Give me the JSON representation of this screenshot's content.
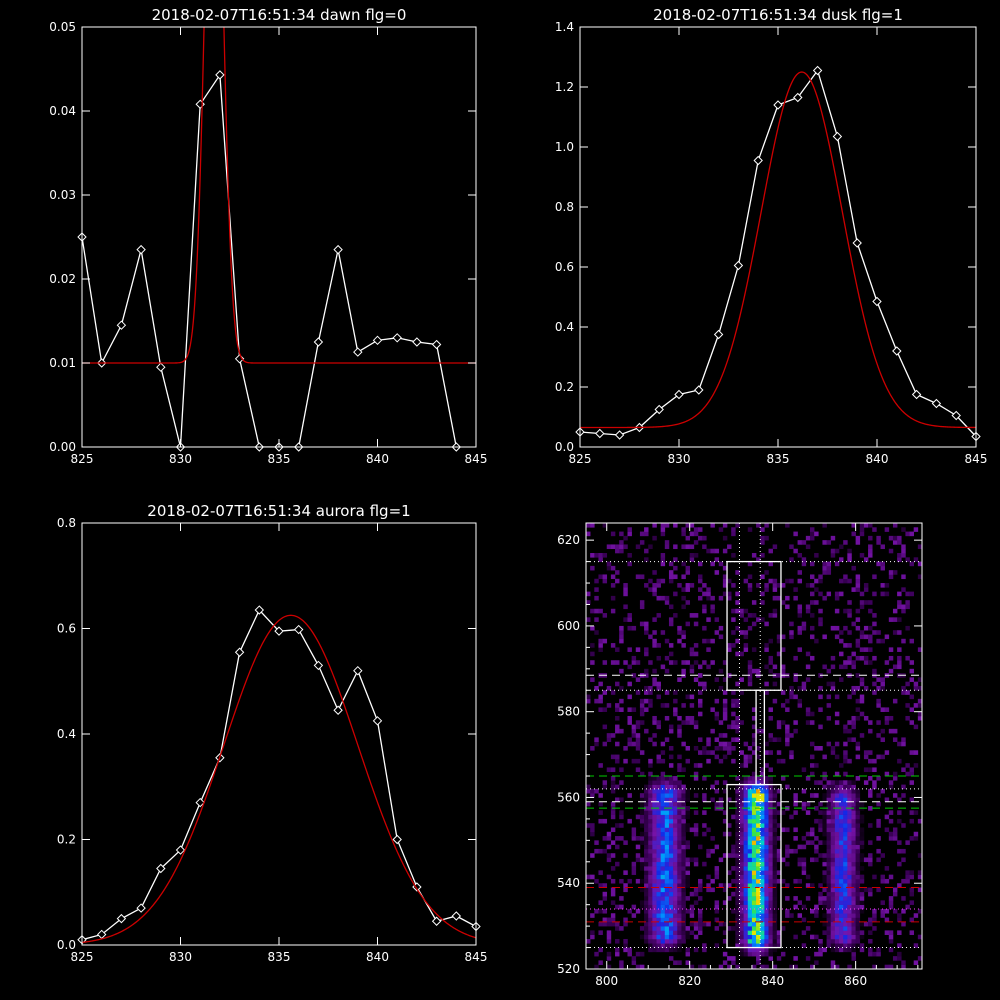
{
  "chart_data": [
    {
      "type": "line",
      "title": "2018-02-07T16:51:34 dawn flg=0",
      "xlim": [
        825,
        845
      ],
      "ylim": [
        0,
        0.05
      ],
      "xticks": [
        "825",
        "830",
        "835",
        "840",
        "845"
      ],
      "yticks": [
        "0.00",
        "0.01",
        "0.02",
        "0.03",
        "0.04",
        "0.05"
      ],
      "series": [
        {
          "color": "#ffffff",
          "markers": "diamond",
          "x": [
            825,
            826,
            827,
            828,
            829,
            830,
            831,
            832,
            833,
            834,
            835,
            836,
            837,
            838,
            839,
            840,
            841,
            842,
            843,
            844
          ],
          "y": [
            0.025,
            0.01,
            0.0145,
            0.0235,
            0.0095,
            0.0,
            0.0408,
            0.0443,
            0.0105,
            0.0,
            0.0,
            0.0,
            0.0125,
            0.0235,
            0.0113,
            0.0127,
            0.013,
            0.0125,
            0.0122,
            0.0
          ]
        },
        {
          "color": "#cc0000",
          "markers": "none",
          "fit": "gaussian",
          "amplitude": 0.075,
          "center": 831.7,
          "sigma": 0.45,
          "baseline": 0.01
        }
      ]
    },
    {
      "type": "line",
      "title": "2018-02-07T16:51:34 dusk flg=1",
      "xlim": [
        825,
        845
      ],
      "ylim": [
        0,
        1.4
      ],
      "xticks": [
        "825",
        "830",
        "835",
        "840",
        "845"
      ],
      "yticks": [
        "0.0",
        "0.2",
        "0.4",
        "0.6",
        "0.8",
        "1.0",
        "1.2",
        "1.4"
      ],
      "series": [
        {
          "color": "#ffffff",
          "markers": "diamond",
          "x": [
            825,
            826,
            827,
            828,
            829,
            830,
            831,
            832,
            833,
            834,
            835,
            836,
            837,
            838,
            839,
            840,
            841,
            842,
            843,
            844,
            845
          ],
          "y": [
            0.05,
            0.045,
            0.04,
            0.065,
            0.125,
            0.175,
            0.19,
            0.375,
            0.605,
            0.955,
            1.14,
            1.165,
            1.255,
            1.035,
            0.68,
            0.485,
            0.32,
            0.175,
            0.145,
            0.105,
            0.035
          ]
        },
        {
          "color": "#cc0000",
          "markers": "none",
          "fit": "gaussian",
          "amplitude": 1.185,
          "center": 836.2,
          "sigma": 2.05,
          "baseline": 0.065
        }
      ]
    },
    {
      "type": "line",
      "title": "2018-02-07T16:51:34 aurora flg=1",
      "xlim": [
        825,
        845
      ],
      "ylim": [
        0,
        0.8
      ],
      "xticks": [
        "825",
        "830",
        "835",
        "840",
        "845"
      ],
      "yticks": [
        "0.0",
        "0.2",
        "0.4",
        "0.6",
        "0.8"
      ],
      "series": [
        {
          "color": "#ffffff",
          "markers": "diamond",
          "x": [
            825,
            826,
            827,
            828,
            829,
            830,
            831,
            832,
            833,
            834,
            835,
            836,
            837,
            838,
            839,
            840,
            841,
            842,
            843,
            844,
            845
          ],
          "y": [
            0.01,
            0.02,
            0.05,
            0.07,
            0.145,
            0.18,
            0.27,
            0.355,
            0.555,
            0.635,
            0.595,
            0.598,
            0.53,
            0.445,
            0.52,
            0.425,
            0.2,
            0.11,
            0.045,
            0.055,
            0.035
          ]
        },
        {
          "color": "#cc0000",
          "markers": "none",
          "fit": "gaussian",
          "amplitude": 0.625,
          "center": 835.6,
          "sigma": 3.4,
          "baseline": 0.0
        }
      ]
    },
    {
      "type": "heatmap",
      "title": "",
      "xlim": [
        795,
        876
      ],
      "ylim": [
        520,
        624
      ],
      "xticks": [
        "800",
        "820",
        "840",
        "860"
      ],
      "yticks": [
        "520",
        "540",
        "560",
        "580",
        "600",
        "620"
      ],
      "colormap": "rainbow",
      "bands": [
        {
          "center": 814,
          "width": 3.5,
          "ymin": 524,
          "ymax": 564,
          "peak": 0.5
        },
        {
          "center": 836,
          "width": 3.0,
          "ymin": 523,
          "ymax": 564,
          "peak": 0.85
        },
        {
          "center": 857,
          "width": 3.0,
          "ymin": 524,
          "ymax": 563,
          "peak": 0.4
        }
      ],
      "hot_spots": [
        {
          "x": 837,
          "y": 560,
          "value": 1.0
        },
        {
          "x": 836,
          "y": 548,
          "value": 0.8
        }
      ],
      "boxes": [
        {
          "x": [
            829,
            842
          ],
          "y": [
            525,
            563
          ],
          "color": "#ffffff"
        },
        {
          "x": [
            829,
            842
          ],
          "y": [
            585,
            615
          ],
          "color": "#ffffff"
        },
        {
          "x": [
            836,
            838
          ],
          "y": [
            563,
            585
          ],
          "color": "#ffffff"
        }
      ],
      "hlines": [
        {
          "y": 615,
          "style": "dotted",
          "color": "#ffffff"
        },
        {
          "y": 588.5,
          "style": "dashed",
          "color": "#ffffff"
        },
        {
          "y": 585,
          "style": "dotted",
          "color": "#ffffff"
        },
        {
          "y": 565,
          "style": "dashed",
          "color": "#00cc00"
        },
        {
          "y": 562,
          "style": "dotted",
          "color": "#ffffff"
        },
        {
          "y": 559,
          "style": "dashed",
          "color": "#ffffff"
        },
        {
          "y": 557.5,
          "style": "dashed",
          "color": "#00cc00"
        },
        {
          "y": 539,
          "style": "dashed",
          "color": "#cc0000"
        },
        {
          "y": 534,
          "style": "dotted",
          "color": "#ff44ff"
        },
        {
          "y": 531,
          "style": "dashed",
          "color": "#cc0000"
        },
        {
          "y": 525,
          "style": "dotted",
          "color": "#ffffff"
        }
      ],
      "vlines": [
        {
          "x": 832,
          "style": "dotted",
          "color": "#ffffff"
        },
        {
          "x": 837,
          "style": "dotted",
          "color": "#ffffff"
        }
      ]
    }
  ]
}
